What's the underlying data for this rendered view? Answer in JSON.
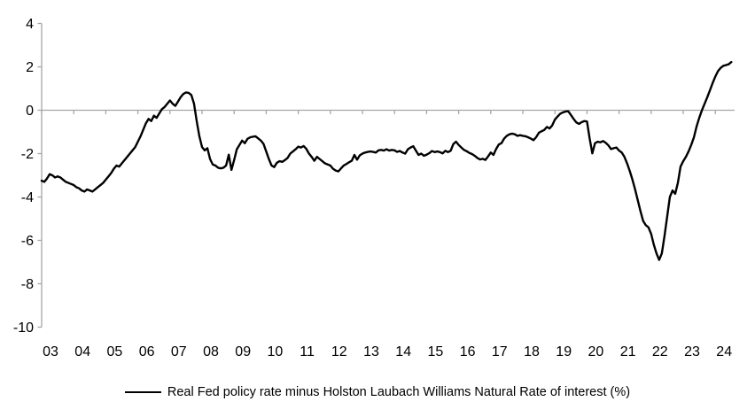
{
  "chart_data": {
    "type": "line",
    "title": "",
    "xlabel": "",
    "ylabel": "",
    "x_tick_labels": [
      "03",
      "04",
      "05",
      "06",
      "07",
      "08",
      "09",
      "10",
      "11",
      "12",
      "13",
      "14",
      "15",
      "16",
      "17",
      "18",
      "19",
      "20",
      "21",
      "22",
      "23",
      "24"
    ],
    "y_ticks": [
      4,
      2,
      0,
      -2,
      -4,
      -6,
      -8,
      -10
    ],
    "ylim": [
      -10,
      4
    ],
    "grid": "zero-line-only",
    "legend_position": "bottom-center",
    "frequency": "monthly",
    "x_start": "2003-01",
    "x_end": "2024-07",
    "series": [
      {
        "name": "Real Fed policy rate minus Holston Laubach Williams Natural Rate of interest (%)",
        "color": "#000000",
        "values": [
          -3.25,
          -3.3,
          -3.15,
          -2.95,
          -3.0,
          -3.1,
          -3.05,
          -3.1,
          -3.2,
          -3.3,
          -3.35,
          -3.4,
          -3.45,
          -3.55,
          -3.6,
          -3.7,
          -3.75,
          -3.65,
          -3.7,
          -3.75,
          -3.65,
          -3.55,
          -3.45,
          -3.35,
          -3.2,
          -3.05,
          -2.9,
          -2.7,
          -2.55,
          -2.6,
          -2.45,
          -2.3,
          -2.15,
          -2.0,
          -1.85,
          -1.7,
          -1.45,
          -1.2,
          -0.9,
          -0.6,
          -0.4,
          -0.5,
          -0.25,
          -0.35,
          -0.15,
          0.05,
          0.15,
          0.3,
          0.45,
          0.3,
          0.2,
          0.4,
          0.6,
          0.75,
          0.82,
          0.8,
          0.7,
          0.3,
          -0.5,
          -1.2,
          -1.7,
          -1.85,
          -1.75,
          -2.25,
          -2.5,
          -2.55,
          -2.65,
          -2.68,
          -2.65,
          -2.55,
          -2.05,
          -2.75,
          -2.3,
          -1.8,
          -1.6,
          -1.4,
          -1.52,
          -1.32,
          -1.25,
          -1.22,
          -1.2,
          -1.3,
          -1.4,
          -1.55,
          -1.9,
          -2.25,
          -2.55,
          -2.62,
          -2.42,
          -2.35,
          -2.38,
          -2.3,
          -2.2,
          -2.0,
          -1.9,
          -1.8,
          -1.68,
          -1.72,
          -1.65,
          -1.78,
          -2.0,
          -2.15,
          -2.33,
          -2.15,
          -2.25,
          -2.35,
          -2.45,
          -2.5,
          -2.55,
          -2.7,
          -2.78,
          -2.82,
          -2.68,
          -2.55,
          -2.48,
          -2.4,
          -2.33,
          -2.06,
          -2.28,
          -2.08,
          -2.0,
          -1.95,
          -1.92,
          -1.9,
          -1.92,
          -1.95,
          -1.85,
          -1.83,
          -1.86,
          -1.8,
          -1.86,
          -1.83,
          -1.85,
          -1.92,
          -1.88,
          -1.95,
          -2.0,
          -1.8,
          -1.72,
          -1.66,
          -1.86,
          -2.06,
          -2.0,
          -2.1,
          -2.05,
          -1.98,
          -1.88,
          -1.93,
          -1.9,
          -1.93,
          -1.99,
          -1.87,
          -1.93,
          -1.87,
          -1.56,
          -1.45,
          -1.6,
          -1.72,
          -1.83,
          -1.89,
          -1.97,
          -2.02,
          -2.1,
          -2.2,
          -2.27,
          -2.24,
          -2.29,
          -2.13,
          -1.95,
          -2.06,
          -1.79,
          -1.58,
          -1.52,
          -1.31,
          -1.18,
          -1.11,
          -1.08,
          -1.11,
          -1.18,
          -1.15,
          -1.18,
          -1.2,
          -1.25,
          -1.31,
          -1.38,
          -1.24,
          -1.04,
          -0.97,
          -0.91,
          -0.77,
          -0.84,
          -0.7,
          -0.43,
          -0.29,
          -0.16,
          -0.1,
          -0.06,
          -0.05,
          -0.22,
          -0.4,
          -0.56,
          -0.63,
          -0.55,
          -0.5,
          -0.52,
          -1.31,
          -1.99,
          -1.52,
          -1.45,
          -1.48,
          -1.42,
          -1.5,
          -1.62,
          -1.79,
          -1.75,
          -1.72,
          -1.86,
          -1.95,
          -2.15,
          -2.45,
          -2.8,
          -3.2,
          -3.65,
          -4.15,
          -4.65,
          -5.1,
          -5.3,
          -5.4,
          -5.7,
          -6.2,
          -6.6,
          -6.9,
          -6.6,
          -5.8,
          -4.9,
          -4.0,
          -3.7,
          -3.85,
          -3.35,
          -2.6,
          -2.35,
          -2.15,
          -1.9,
          -1.6,
          -1.25,
          -0.75,
          -0.35,
          0.0,
          0.3,
          0.6,
          0.92,
          1.25,
          1.55,
          1.8,
          1.95,
          2.05,
          2.08,
          2.12,
          2.22
        ]
      }
    ]
  },
  "legend": {
    "label": "Real Fed policy rate minus Holston Laubach Williams Natural Rate of interest (%)"
  },
  "colors": {
    "background": "#ffffff",
    "line": "#000000",
    "axis": "#a6a6a6",
    "text": "#000000"
  }
}
